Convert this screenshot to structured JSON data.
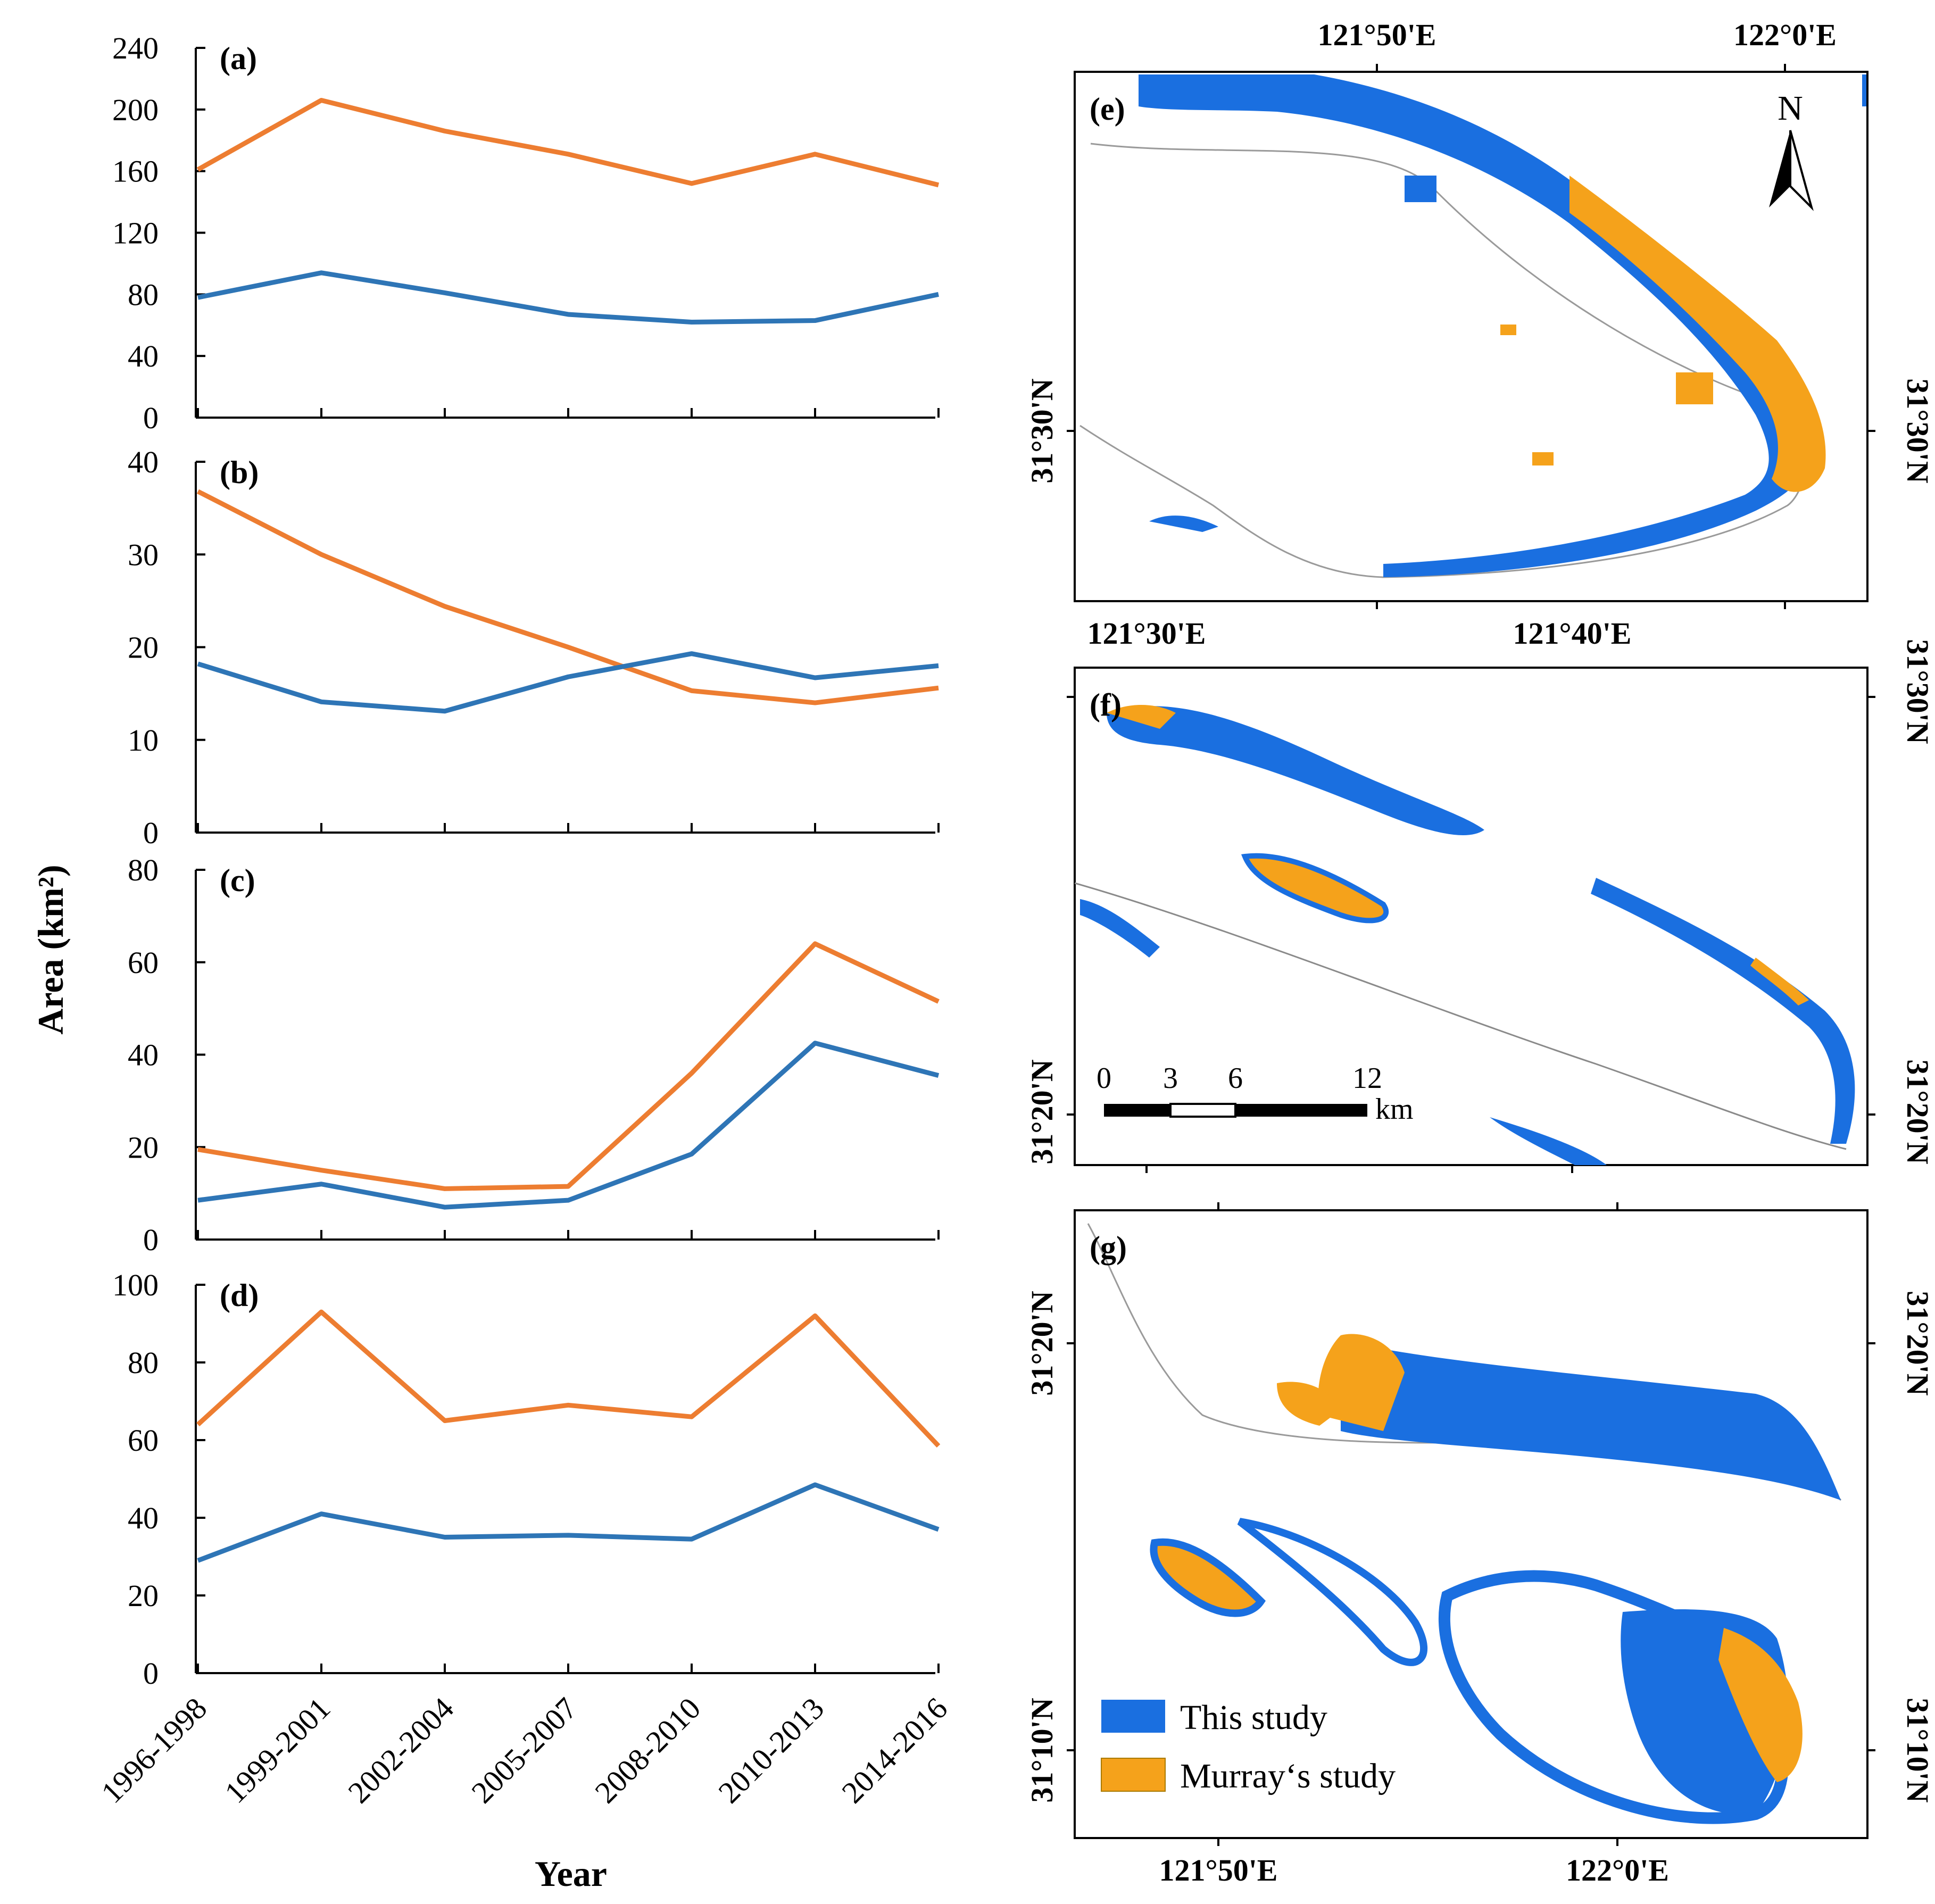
{
  "colors": {
    "this_study": "#2e75b6",
    "murray_study": "#ed7d31",
    "map_this_study": "#1a6fe0",
    "map_murray_study": "#f5a21b"
  },
  "chart_data": [
    {
      "type": "line",
      "panel": "(a)",
      "categories": [
        "1996-1998",
        "1999-2001",
        "2002-2004",
        "2005-2007",
        "2008-2010",
        "2010-2013",
        "2014-2016"
      ],
      "ylim": [
        0,
        240
      ],
      "yticks": [
        "0",
        "40",
        "80",
        "120",
        "160",
        "200",
        "240"
      ],
      "series": [
        {
          "name": "Murray's study",
          "values": [
            161,
            206,
            186,
            171,
            152,
            171,
            151
          ]
        },
        {
          "name": "This study",
          "values": [
            78,
            94,
            81,
            67,
            62,
            63,
            80
          ]
        }
      ]
    },
    {
      "type": "line",
      "panel": "(b)",
      "categories": [
        "1996-1998",
        "1999-2001",
        "2002-2004",
        "2005-2007",
        "2008-2010",
        "2010-2013",
        "2014-2016"
      ],
      "ylim": [
        0,
        40
      ],
      "yticks": [
        "0",
        "10",
        "20",
        "30",
        "40"
      ],
      "series": [
        {
          "name": "Murray's study",
          "values": [
            36.8,
            30,
            24.4,
            20,
            15.3,
            14,
            15.6
          ]
        },
        {
          "name": "This study",
          "values": [
            18.2,
            14.1,
            13.1,
            16.8,
            19.3,
            16.7,
            18
          ]
        }
      ]
    },
    {
      "type": "line",
      "panel": "(c)",
      "categories": [
        "1996-1998",
        "1999-2001",
        "2002-2004",
        "2005-2007",
        "2008-2010",
        "2010-2013",
        "2014-2016"
      ],
      "ylim": [
        0,
        80
      ],
      "yticks": [
        "0",
        "20",
        "40",
        "60",
        "80"
      ],
      "series": [
        {
          "name": "Murray's study",
          "values": [
            19.5,
            15,
            11,
            11.5,
            36,
            64,
            51.5
          ]
        },
        {
          "name": "This study",
          "values": [
            8.5,
            12,
            7,
            8.5,
            18.5,
            42.5,
            35.5
          ]
        }
      ]
    },
    {
      "type": "line",
      "panel": "(d)",
      "categories": [
        "1996-1998",
        "1999-2001",
        "2002-2004",
        "2005-2007",
        "2008-2010",
        "2010-2013",
        "2014-2016"
      ],
      "ylim": [
        0,
        100
      ],
      "yticks": [
        "0",
        "20",
        "40",
        "60",
        "80",
        "100"
      ],
      "series": [
        {
          "name": "Murray's study",
          "values": [
            64,
            93,
            65,
            69,
            66,
            92,
            58.5
          ]
        },
        {
          "name": "This study",
          "values": [
            29,
            41,
            35,
            35.5,
            34.5,
            48.5,
            37
          ]
        }
      ]
    }
  ],
  "charts": {
    "ylabel": "Area (km²)",
    "xlabel": "Year"
  },
  "maps": {
    "e": {
      "label": "(e)",
      "top_coords": [
        "121°50'E",
        "122°0'E"
      ],
      "side_coord": "31°30'N",
      "north_label": "N"
    },
    "f": {
      "label": "(f)",
      "top_coords": [
        "121°30'E",
        "121°40'E"
      ],
      "side_coords_right": [
        "31°30'N",
        "31°20'N"
      ],
      "side_coord_left": "31°20'N",
      "scale_labels": [
        "0",
        "3",
        "6",
        "12"
      ],
      "scale_unit": "km"
    },
    "g": {
      "label": "(g)",
      "side_coords": [
        "31°20'N",
        "31°10'N"
      ],
      "bottom_coords": [
        "121°50'E",
        "122°0'E"
      ]
    }
  },
  "legend": {
    "this_study": "This study",
    "murray_study": "Murray‘s study"
  }
}
